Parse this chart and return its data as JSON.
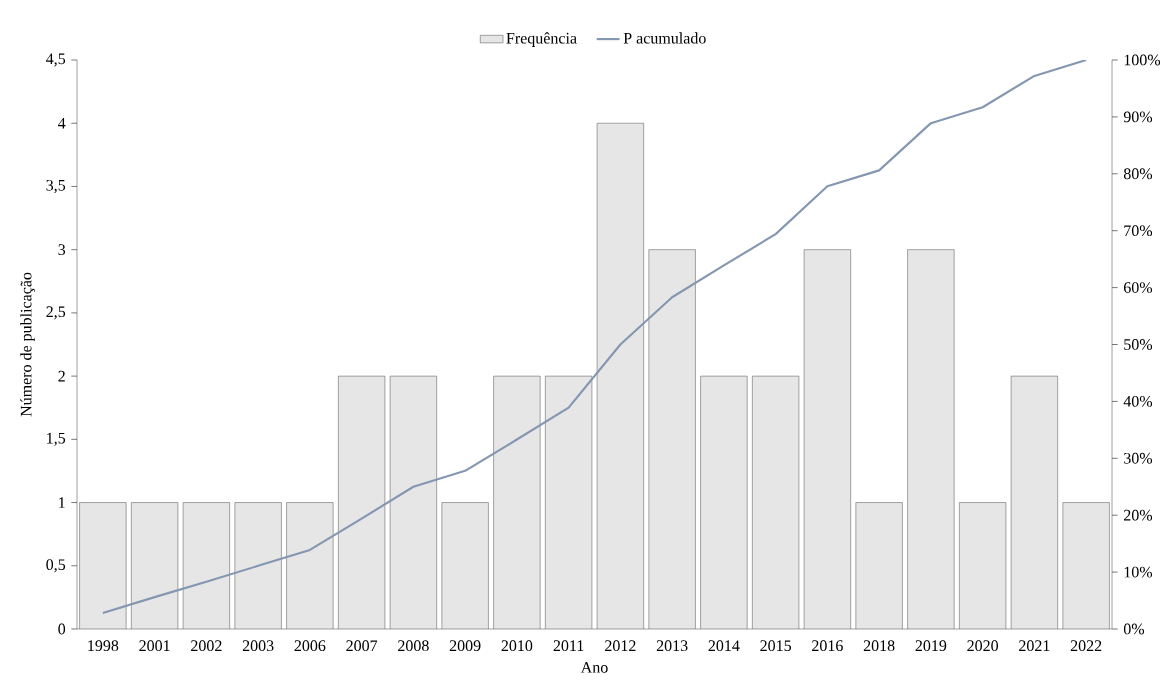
{
  "chart_data": {
    "type": "bar",
    "categories": [
      "1998",
      "2001",
      "2002",
      "2003",
      "2006",
      "2007",
      "2008",
      "2009",
      "2010",
      "2011",
      "2012",
      "2013",
      "2014",
      "2015",
      "2016",
      "2018",
      "2019",
      "2020",
      "2021",
      "2022"
    ],
    "series": [
      {
        "name": "Frequência",
        "color": "#e6e6e6",
        "values": [
          1,
          1,
          1,
          1,
          1,
          2,
          2,
          1,
          2,
          2,
          4,
          3,
          2,
          2,
          3,
          1,
          3,
          1,
          2,
          1
        ]
      },
      {
        "name": "P acumulado",
        "type": "line",
        "axis": "y2",
        "color": "#8497b0",
        "values": [
          2.8,
          5.6,
          8.3,
          11.1,
          13.9,
          19.4,
          25,
          27.8,
          33.3,
          38.9,
          50,
          58.3,
          63.9,
          69.4,
          77.8,
          80.6,
          88.9,
          91.7,
          97.2,
          100
        ]
      }
    ],
    "xlabel": "Ano",
    "ylabel": "Número de publicação",
    "ylim": [
      0,
      4.5
    ],
    "yticks": [
      0,
      {
        "value": 0.5,
        "label": "0,5"
      },
      1,
      {
        "value": 1.5,
        "label": "1,5"
      },
      2,
      {
        "value": 2.5,
        "label": "2,5"
      },
      3,
      {
        "value": 3.5,
        "label": "3,5"
      },
      4,
      {
        "value": 4.5,
        "label": "4,5"
      }
    ],
    "y2lim": [
      0,
      100
    ],
    "y2ticks": [
      {
        "value": 0,
        "label": "0%"
      },
      {
        "value": 10,
        "label": "10%"
      },
      {
        "value": 20,
        "label": "20%"
      },
      {
        "value": 30,
        "label": "30%"
      },
      {
        "value": 40,
        "label": "40%"
      },
      {
        "value": 50,
        "label": "50%"
      },
      {
        "value": 60,
        "label": "60%"
      },
      {
        "value": 70,
        "label": "70%"
      },
      {
        "value": 80,
        "label": "80%"
      },
      {
        "value": 90,
        "label": "90%"
      },
      {
        "value": 100,
        "label": "100%"
      }
    ],
    "legend": "top"
  }
}
